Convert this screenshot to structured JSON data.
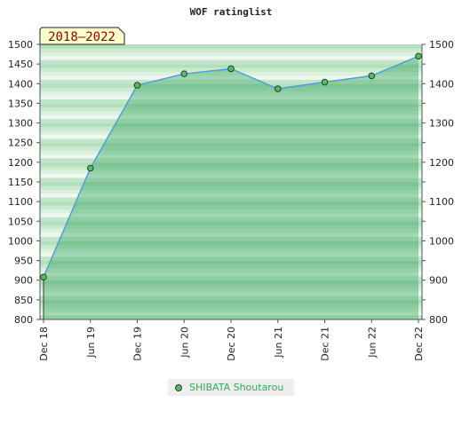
{
  "chart_data": {
    "type": "area",
    "title": "WOF ratinglist",
    "badge": "2018–2022",
    "x": [
      "Dec 18",
      "Jun 19",
      "Dec 19",
      "Jun 20",
      "Dec 20",
      "Jun 21",
      "Dec 21",
      "Jun 22",
      "Dec 22"
    ],
    "series": [
      {
        "name": "SHIBATA Shoutarou",
        "values": [
          908,
          1185,
          1396,
          1425,
          1438,
          1387,
          1404,
          1420,
          1470
        ]
      }
    ],
    "y_ticks": [
      800,
      850,
      900,
      950,
      1000,
      1050,
      1100,
      1150,
      1200,
      1250,
      1300,
      1350,
      1400,
      1450,
      1500
    ],
    "ylim": [
      800,
      1500
    ],
    "grid": true,
    "legend_position": "bottom",
    "colors": {
      "line": "#4aa3d4",
      "area": "#6cbf86",
      "marker": "#55bb66",
      "marker_stroke": "#224422",
      "badge_bg": "#ffffcc",
      "legend_text": "#33aa55"
    }
  }
}
